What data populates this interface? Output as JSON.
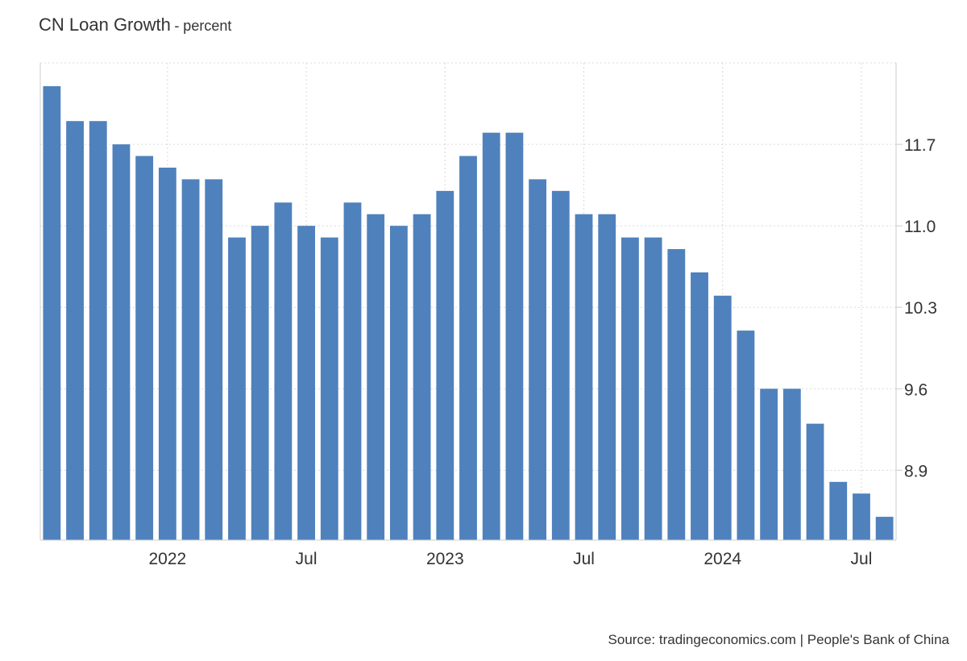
{
  "chart_data": {
    "type": "bar",
    "title": "CN Loan Growth",
    "subtitle": "- percent",
    "xlabel": "",
    "ylabel": "",
    "series_color": "#4f81bd",
    "grid": true,
    "grid_color": "#d9d9d9",
    "y_axis_side": "right",
    "ylim": [
      8.3,
      12.4
    ],
    "yticks": [
      8.9,
      9.6,
      10.3,
      11.0,
      11.7
    ],
    "ytick_labels": [
      "8.9",
      "9.6",
      "10.3",
      "11.0",
      "11.7"
    ],
    "x_tick_labels": [
      {
        "index": 5,
        "label": "2022"
      },
      {
        "index": 11,
        "label": "Jul"
      },
      {
        "index": 17,
        "label": "2023"
      },
      {
        "index": 23,
        "label": "Jul"
      },
      {
        "index": 29,
        "label": "2024"
      },
      {
        "index": 35,
        "label": "Jul"
      }
    ],
    "categories": [
      "2021-08",
      "2021-09",
      "2021-10",
      "2021-11",
      "2021-12",
      "2022-01",
      "2022-02",
      "2022-03",
      "2022-04",
      "2022-05",
      "2022-06",
      "2022-07",
      "2022-08",
      "2022-09",
      "2022-10",
      "2022-11",
      "2022-12",
      "2023-01",
      "2023-02",
      "2023-03",
      "2023-04",
      "2023-05",
      "2023-06",
      "2023-07",
      "2023-08",
      "2023-09",
      "2023-10",
      "2023-11",
      "2023-12",
      "2024-01",
      "2024-02",
      "2024-03",
      "2024-04",
      "2024-05",
      "2024-06",
      "2024-07",
      "2024-08"
    ],
    "values": [
      12.2,
      11.9,
      11.9,
      11.7,
      11.6,
      11.5,
      11.4,
      11.4,
      10.9,
      11.0,
      11.2,
      11.0,
      10.9,
      11.2,
      11.1,
      11.0,
      11.1,
      11.3,
      11.6,
      11.8,
      11.8,
      11.4,
      11.3,
      11.1,
      11.1,
      10.9,
      10.9,
      10.8,
      10.6,
      10.4,
      10.1,
      9.6,
      9.6,
      9.3,
      8.8,
      8.7,
      8.5
    ]
  },
  "source": "Source: tradingeconomics.com | People's Bank of China"
}
